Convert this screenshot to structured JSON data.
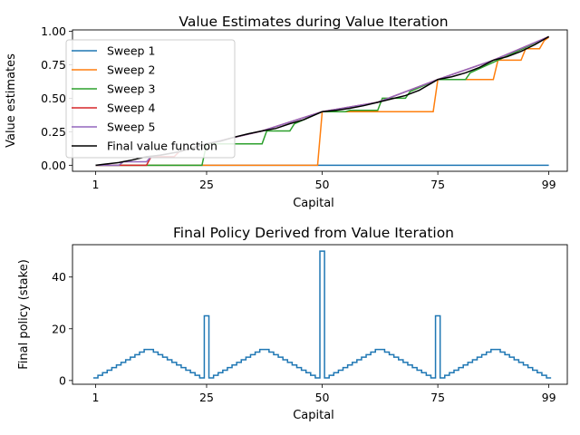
{
  "chart_data": [
    {
      "type": "line",
      "title": "Value Estimates during Value Iteration",
      "xlabel": "Capital",
      "ylabel": "Value estimates",
      "xlim": [
        -4,
        103
      ],
      "ylim": [
        -0.045,
        1.01
      ],
      "xticks": [
        1,
        25,
        50,
        75,
        99
      ],
      "yticks": [
        0.0,
        0.25,
        0.5,
        0.75,
        1.0
      ],
      "ytick_labels": [
        "0.00",
        "0.25",
        "0.50",
        "0.75",
        "1.00"
      ],
      "grid": false,
      "legend_position": "upper left",
      "series": [
        {
          "name": "Sweep 1",
          "color": "#1f77b4",
          "x": [
            1,
            99
          ],
          "y": [
            0.0,
            0.0
          ]
        },
        {
          "name": "Sweep 2",
          "color": "#ff7f0e",
          "x": [
            1,
            49,
            50,
            74,
            75,
            87,
            88,
            93,
            94,
            95,
            96,
            97,
            98,
            99
          ],
          "y": [
            0.0,
            0.0,
            0.4,
            0.4,
            0.64,
            0.64,
            0.784,
            0.784,
            0.87,
            0.87,
            0.87,
            0.87,
            0.93,
            0.955
          ]
        },
        {
          "name": "Sweep 3",
          "color": "#2ca02c",
          "x": [
            1,
            24,
            25,
            37,
            38,
            43,
            44,
            50,
            55,
            56,
            62,
            63,
            68,
            69,
            75,
            81,
            82,
            88,
            99
          ],
          "y": [
            0.0,
            0.0,
            0.16,
            0.16,
            0.256,
            0.256,
            0.31,
            0.4,
            0.4,
            0.41,
            0.41,
            0.5,
            0.5,
            0.55,
            0.64,
            0.64,
            0.69,
            0.784,
            0.96
          ]
        },
        {
          "name": "Sweep 4",
          "color": "#d62728",
          "x": [
            1,
            12,
            13,
            18,
            19,
            25,
            37,
            50,
            62,
            75,
            87,
            99
          ],
          "y": [
            0.0,
            0.0,
            0.064,
            0.064,
            0.1,
            0.16,
            0.256,
            0.4,
            0.47,
            0.64,
            0.784,
            0.96
          ]
        },
        {
          "name": "Sweep 5",
          "color": "#9467bd",
          "x": [
            1,
            6,
            7,
            12,
            13,
            19,
            25,
            37,
            50,
            62,
            75,
            87,
            99
          ],
          "y": [
            0.0,
            0.0,
            0.026,
            0.026,
            0.064,
            0.1,
            0.16,
            0.256,
            0.4,
            0.47,
            0.64,
            0.784,
            0.96
          ]
        },
        {
          "name": "Final value function",
          "color": "#000000",
          "x": [
            1,
            3,
            6,
            9,
            12,
            15,
            19,
            22,
            25,
            28,
            31,
            34,
            37,
            40,
            43,
            46,
            50,
            53,
            56,
            59,
            62,
            65,
            68,
            71,
            75,
            78,
            81,
            84,
            87,
            90,
            93,
            96,
            99
          ],
          "y": [
            0.0,
            0.008,
            0.02,
            0.04,
            0.064,
            0.075,
            0.1,
            0.13,
            0.16,
            0.18,
            0.21,
            0.235,
            0.256,
            0.275,
            0.31,
            0.34,
            0.4,
            0.41,
            0.425,
            0.445,
            0.47,
            0.495,
            0.52,
            0.56,
            0.64,
            0.66,
            0.69,
            0.73,
            0.784,
            0.81,
            0.85,
            0.9,
            0.96
          ]
        }
      ]
    },
    {
      "type": "line",
      "drawstyle": "steps",
      "title": "Final Policy Derived from Value Iteration",
      "xlabel": "Capital",
      "ylabel": "Final policy (stake)",
      "xlim": [
        -4,
        103
      ],
      "ylim": [
        -1.45,
        52.5
      ],
      "xticks": [
        1,
        25,
        50,
        75,
        99
      ],
      "yticks": [
        0,
        20,
        40
      ],
      "ytick_labels": [
        "0",
        "20",
        "40"
      ],
      "grid": false,
      "series": [
        {
          "name": "",
          "color": "#1f77b4",
          "x": [
            1,
            2,
            3,
            4,
            5,
            6,
            7,
            8,
            9,
            10,
            11,
            12,
            13,
            14,
            15,
            16,
            17,
            18,
            19,
            20,
            21,
            22,
            23,
            24,
            25,
            26,
            27,
            28,
            29,
            30,
            31,
            32,
            33,
            34,
            35,
            36,
            37,
            38,
            39,
            40,
            41,
            42,
            43,
            44,
            45,
            46,
            47,
            48,
            49,
            50,
            51,
            52,
            53,
            54,
            55,
            56,
            57,
            58,
            59,
            60,
            61,
            62,
            63,
            64,
            65,
            66,
            67,
            68,
            69,
            70,
            71,
            72,
            73,
            74,
            75,
            76,
            77,
            78,
            79,
            80,
            81,
            82,
            83,
            84,
            85,
            86,
            87,
            88,
            89,
            90,
            91,
            92,
            93,
            94,
            95,
            96,
            97,
            98,
            99
          ],
          "y": [
            1,
            2,
            3,
            4,
            5,
            6,
            7,
            8,
            9,
            10,
            11,
            12,
            12,
            11,
            10,
            9,
            8,
            7,
            6,
            5,
            4,
            3,
            2,
            1,
            25,
            1,
            2,
            3,
            4,
            5,
            6,
            7,
            8,
            9,
            10,
            11,
            12,
            12,
            11,
            10,
            9,
            8,
            7,
            6,
            5,
            4,
            3,
            2,
            1,
            50,
            1,
            2,
            3,
            4,
            5,
            6,
            7,
            8,
            9,
            10,
            11,
            12,
            12,
            11,
            10,
            9,
            8,
            7,
            6,
            5,
            4,
            3,
            2,
            1,
            25,
            1,
            2,
            3,
            4,
            5,
            6,
            7,
            8,
            9,
            10,
            11,
            12,
            12,
            11,
            10,
            9,
            8,
            7,
            6,
            5,
            4,
            3,
            2,
            1
          ]
        }
      ]
    }
  ]
}
